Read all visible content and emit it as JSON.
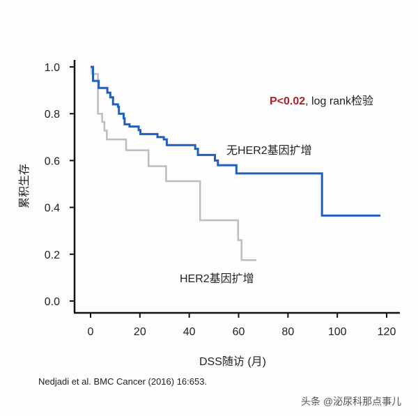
{
  "chart_data": {
    "type": "line",
    "subtype": "kaplan-meier",
    "xlabel": "DSS随访 (月)",
    "ylabel": "累积生存",
    "xlim": [
      0,
      120
    ],
    "ylim": [
      0,
      1.0
    ],
    "xticks": [
      0,
      20,
      40,
      60,
      80,
      100,
      120
    ],
    "yticks": [
      "0.0",
      "0.2",
      "0.4",
      "0.6",
      "0.8",
      "1.0"
    ],
    "annotation": {
      "p_value": "P<0.02",
      "test": ", log rank检验"
    },
    "series": [
      {
        "name": "无HER2基因扩增",
        "color": "#1f5fbf",
        "steps": [
          [
            0,
            1.0
          ],
          [
            1,
            0.94
          ],
          [
            3.3,
            0.91
          ],
          [
            6.8,
            0.89
          ],
          [
            8,
            0.87
          ],
          [
            9.1,
            0.84
          ],
          [
            11.1,
            0.83
          ],
          [
            11.5,
            0.8
          ],
          [
            13.4,
            0.78
          ],
          [
            13.8,
            0.755
          ],
          [
            15.8,
            0.745
          ],
          [
            19.5,
            0.73
          ],
          [
            20.2,
            0.713
          ],
          [
            27.1,
            0.7
          ],
          [
            29.7,
            0.69
          ],
          [
            30.9,
            0.666
          ],
          [
            42.4,
            0.65
          ],
          [
            43.5,
            0.624
          ],
          [
            50.4,
            0.6
          ],
          [
            51.6,
            0.58
          ],
          [
            59.1,
            0.545
          ],
          [
            93.8,
            0.365
          ]
        ],
        "end": 117.5
      },
      {
        "name": "HER2基因扩增",
        "color": "#bdbdbd",
        "steps": [
          [
            0,
            1.0
          ],
          [
            0.5,
            0.97
          ],
          [
            3.0,
            0.8
          ],
          [
            4.7,
            0.765
          ],
          [
            5.6,
            0.728
          ],
          [
            6.6,
            0.69
          ],
          [
            14.4,
            0.644
          ],
          [
            23.5,
            0.576
          ],
          [
            30.6,
            0.512
          ],
          [
            44.4,
            0.345
          ],
          [
            59.8,
            0.26
          ],
          [
            61.2,
            0.175
          ]
        ],
        "end": 67.2
      }
    ]
  },
  "citation": "Nedjadi et al. BMC Cancer (2016) 16:653.",
  "watermark": "头条 @泌尿科那点事儿"
}
